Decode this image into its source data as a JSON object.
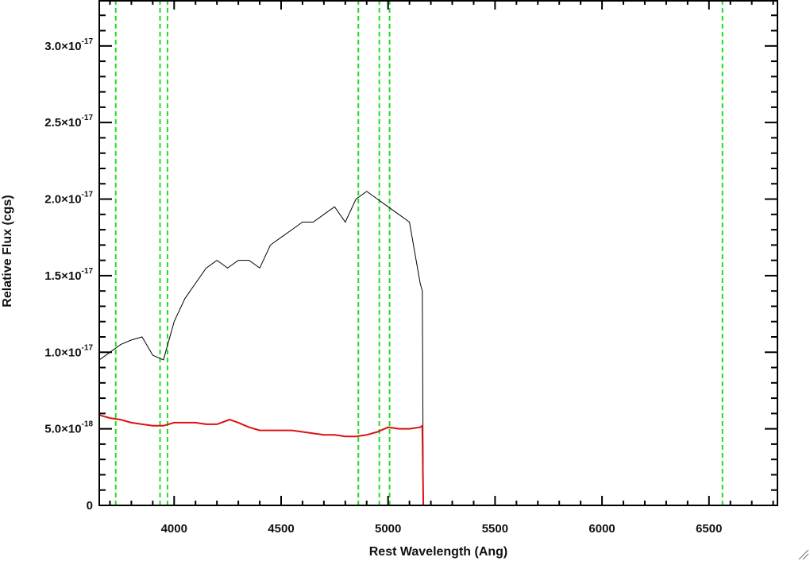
{
  "chart_data": {
    "type": "line",
    "title": "",
    "xlabel": "Rest Wavelength (Ang)",
    "ylabel": "Relative Flux (cgs)",
    "xlim": [
      3650,
      6820
    ],
    "ylim": [
      0,
      3.3e-17
    ],
    "x_ticks": [
      {
        "value": 4000,
        "label": "4000"
      },
      {
        "value": 4500,
        "label": "4500"
      },
      {
        "value": 5000,
        "label": "5000"
      },
      {
        "value": 5500,
        "label": "5500"
      },
      {
        "value": 6000,
        "label": "6000"
      },
      {
        "value": 6500,
        "label": "6500"
      }
    ],
    "y_ticks": [
      {
        "value": 0,
        "mantissa": "0",
        "exponent": ""
      },
      {
        "value": 5e-18,
        "mantissa": "5.0×10",
        "exponent": "-18"
      },
      {
        "value": 1e-17,
        "mantissa": "1.0×10",
        "exponent": "-17"
      },
      {
        "value": 1.5e-17,
        "mantissa": "1.5×10",
        "exponent": "-17"
      },
      {
        "value": 2e-17,
        "mantissa": "2.0×10",
        "exponent": "-17"
      },
      {
        "value": 2.5e-17,
        "mantissa": "2.5×10",
        "exponent": "-17"
      },
      {
        "value": 3e-17,
        "mantissa": "3.0×10",
        "exponent": "-17"
      }
    ],
    "vertical_lines": [
      3727,
      3934,
      3969,
      4861,
      4959,
      5007,
      6563
    ],
    "spectrum_end": 5165,
    "series": [
      {
        "color": "#000000",
        "style": "solid",
        "x": [
          3650,
          3700,
          3750,
          3800,
          3850,
          3900,
          3950,
          4000,
          4050,
          4100,
          4150,
          4200,
          4250,
          4300,
          4350,
          4400,
          4450,
          4500,
          4550,
          4600,
          4650,
          4700,
          4750,
          4800,
          4850,
          4900,
          4950,
          5000,
          5050,
          5100,
          5150,
          5160,
          5165,
          5170,
          6820
        ],
        "y": [
          9.5e-18,
          1e-17,
          1.05e-17,
          1.08e-17,
          1.1e-17,
          9.8e-18,
          9.5e-18,
          1.2e-17,
          1.35e-17,
          1.45e-17,
          1.55e-17,
          1.6e-17,
          1.55e-17,
          1.6e-17,
          1.6e-17,
          1.55e-17,
          1.7e-17,
          1.75e-17,
          1.8e-17,
          1.85e-17,
          1.85e-17,
          1.9e-17,
          1.95e-17,
          1.85e-17,
          2e-17,
          2.05e-17,
          2e-17,
          1.95e-17,
          1.9e-17,
          1.85e-17,
          1.45e-17,
          1.4e-17,
          0,
          0,
          0
        ]
      },
      {
        "color": "#dd1111",
        "style": "solid",
        "x": [
          3650,
          3700,
          3750,
          3800,
          3850,
          3900,
          3950,
          4000,
          4050,
          4100,
          4150,
          4200,
          4240,
          4260,
          4300,
          4350,
          4400,
          4450,
          4500,
          4550,
          4600,
          4650,
          4700,
          4750,
          4800,
          4850,
          4900,
          4950,
          5000,
          5050,
          5100,
          5150,
          5160,
          5165,
          5170,
          6820
        ],
        "y": [
          5.9e-18,
          5.7e-18,
          5.6e-18,
          5.4e-18,
          5.3e-18,
          5.2e-18,
          5.2e-18,
          5.4e-18,
          5.4e-18,
          5.4e-18,
          5.3e-18,
          5.3e-18,
          5.5e-18,
          5.6e-18,
          5.4e-18,
          5.1e-18,
          4.9e-18,
          4.9e-18,
          4.9e-18,
          4.9e-18,
          4.8e-18,
          4.7e-18,
          4.6e-18,
          4.6e-18,
          4.5e-18,
          4.5e-18,
          4.6e-18,
          4.8e-18,
          5.1e-18,
          5e-18,
          5e-18,
          5.1e-18,
          5.2e-18,
          0,
          0,
          0
        ]
      }
    ],
    "grid": false,
    "legend": "none"
  }
}
